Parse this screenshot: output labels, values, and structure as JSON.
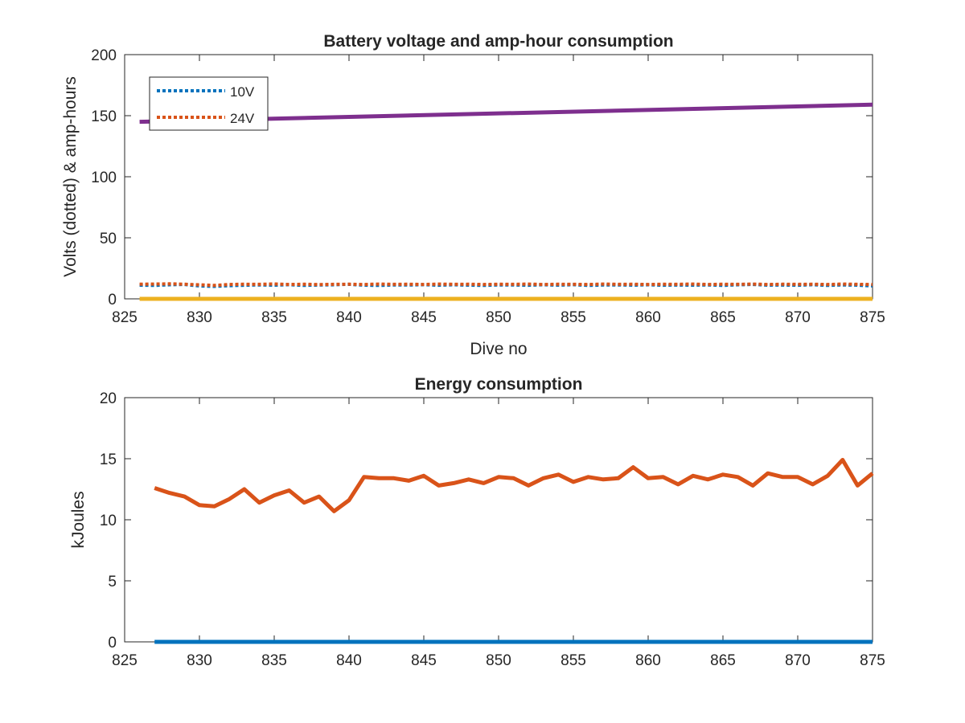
{
  "chart_data": [
    {
      "type": "line",
      "title": "Battery voltage and amp-hour consumption",
      "xlabel": "Dive no",
      "ylabel": "Volts (dotted) & amp-hours",
      "xlim": [
        825,
        875
      ],
      "ylim": [
        0,
        200
      ],
      "xticks": [
        825,
        830,
        835,
        840,
        845,
        850,
        855,
        860,
        865,
        870,
        875
      ],
      "yticks": [
        0,
        50,
        100,
        150,
        200
      ],
      "legend_position": "top-left",
      "series": [
        {
          "name": "10V",
          "style": "dotted",
          "color": "#0072BD",
          "x": [
            826,
            827,
            828,
            829,
            830,
            831,
            832,
            833,
            834,
            835,
            836,
            837,
            838,
            839,
            840,
            841,
            842,
            843,
            844,
            845,
            846,
            847,
            848,
            849,
            850,
            851,
            852,
            853,
            854,
            855,
            856,
            857,
            858,
            859,
            860,
            861,
            862,
            863,
            864,
            865,
            866,
            867,
            868,
            869,
            870,
            871,
            872,
            873,
            874,
            875
          ],
          "values": [
            11.2,
            11.0,
            11.5,
            11.8,
            10.5,
            10.2,
            10.8,
            11.1,
            11.4,
            11.2,
            11.6,
            11.0,
            11.3,
            11.5,
            11.9,
            11.2,
            11.0,
            11.4,
            11.3,
            11.6,
            11.1,
            11.5,
            11.2,
            11.0,
            11.4,
            11.3,
            11.1,
            11.5,
            11.2,
            11.6,
            11.0,
            11.3,
            11.4,
            11.2,
            11.5,
            11.1,
            11.3,
            11.2,
            11.4,
            11.0,
            11.5,
            11.8,
            11.2,
            11.3,
            11.1,
            11.6,
            11.0,
            11.4,
            11.2,
            10.6
          ]
        },
        {
          "name": "24V",
          "style": "dotted",
          "color": "#D95319",
          "x": [
            826,
            827,
            828,
            829,
            830,
            831,
            832,
            833,
            834,
            835,
            836,
            837,
            838,
            839,
            840,
            841,
            842,
            843,
            844,
            845,
            846,
            847,
            848,
            849,
            850,
            851,
            852,
            853,
            854,
            855,
            856,
            857,
            858,
            859,
            860,
            861,
            862,
            863,
            864,
            865,
            866,
            867,
            868,
            869,
            870,
            871,
            872,
            873,
            874,
            875
          ],
          "values": [
            12.0,
            12.1,
            12.3,
            12.0,
            11.5,
            11.0,
            11.8,
            12.0,
            11.9,
            12.2,
            11.8,
            12.0,
            11.7,
            11.9,
            12.0,
            11.8,
            12.1,
            11.9,
            12.0,
            11.8,
            12.1,
            11.9,
            12.0,
            11.8,
            12.0,
            11.9,
            12.1,
            11.8,
            12.0,
            11.9,
            11.8,
            12.1,
            11.9,
            12.0,
            11.8,
            12.0,
            11.9,
            12.1,
            11.8,
            12.0,
            11.9,
            12.1,
            11.8,
            12.0,
            11.9,
            12.0,
            11.8,
            12.1,
            11.9,
            11.7
          ]
        },
        {
          "style": "solid",
          "color": "#7E2F8E",
          "x": [
            826,
            875
          ],
          "values": [
            145,
            159
          ]
        },
        {
          "style": "solid",
          "color": "#EDB120",
          "x": [
            826,
            875
          ],
          "values": [
            0,
            0
          ]
        }
      ]
    },
    {
      "type": "line",
      "title": "Energy consumption",
      "xlabel": "",
      "ylabel": "kJoules",
      "xlim": [
        825,
        875
      ],
      "ylim": [
        0,
        20
      ],
      "xticks": [
        825,
        830,
        835,
        840,
        845,
        850,
        855,
        860,
        865,
        870,
        875
      ],
      "yticks": [
        0,
        5,
        10,
        15,
        20
      ],
      "series": [
        {
          "style": "solid",
          "color": "#D95319",
          "x": [
            827,
            828,
            829,
            830,
            831,
            832,
            833,
            834,
            835,
            836,
            837,
            838,
            839,
            840,
            841,
            842,
            843,
            844,
            845,
            846,
            847,
            848,
            849,
            850,
            851,
            852,
            853,
            854,
            855,
            856,
            857,
            858,
            859,
            860,
            861,
            862,
            863,
            864,
            865,
            866,
            867,
            868,
            869,
            870,
            871,
            872,
            873,
            874,
            875
          ],
          "values": [
            12.6,
            12.2,
            11.9,
            11.2,
            11.1,
            11.7,
            12.5,
            11.4,
            12.0,
            12.4,
            11.4,
            11.9,
            10.7,
            11.6,
            13.5,
            13.4,
            13.4,
            13.2,
            13.6,
            12.8,
            13.0,
            13.3,
            13.0,
            13.5,
            13.4,
            12.8,
            13.4,
            13.7,
            13.1,
            13.5,
            13.3,
            13.4,
            14.3,
            13.4,
            13.5,
            12.9,
            13.6,
            13.3,
            13.7,
            13.5,
            12.8,
            13.8,
            13.5,
            13.5,
            12.9,
            13.6,
            14.9,
            12.8,
            13.8
          ]
        },
        {
          "style": "solid",
          "color": "#0072BD",
          "x": [
            827,
            875
          ],
          "values": [
            0,
            0
          ]
        }
      ]
    }
  ]
}
